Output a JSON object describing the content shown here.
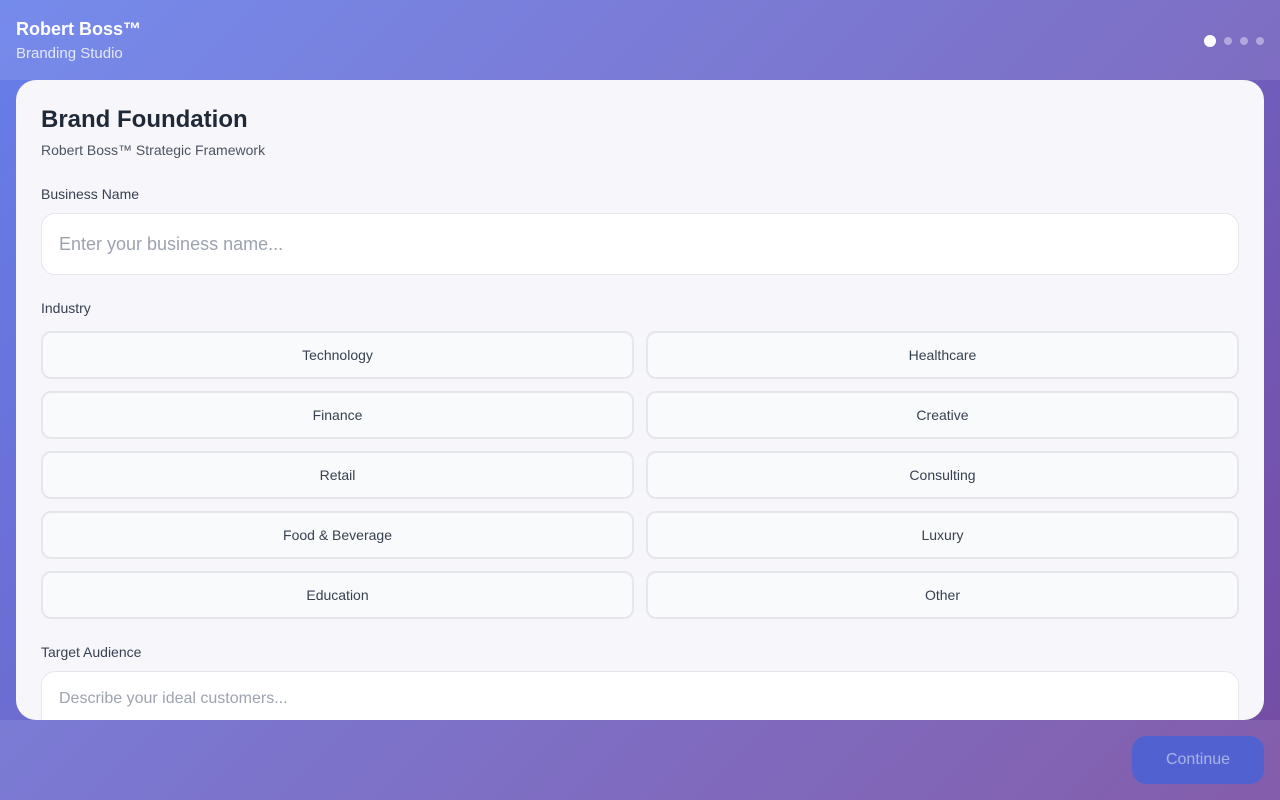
{
  "header": {
    "title": "Robert Boss™",
    "subtitle": "Branding Studio",
    "steps_total": 4,
    "current_step": 1
  },
  "card": {
    "title": "Brand Foundation",
    "subtitle": "Robert Boss™ Strategic Framework",
    "business_name": {
      "label": "Business Name",
      "placeholder": "Enter your business name...",
      "value": ""
    },
    "industry": {
      "label": "Industry",
      "options": [
        "Technology",
        "Healthcare",
        "Finance",
        "Creative",
        "Retail",
        "Consulting",
        "Food & Beverage",
        "Luxury",
        "Education",
        "Other"
      ]
    },
    "audience": {
      "label": "Target Audience",
      "placeholder": "Describe your ideal customers...",
      "value": ""
    }
  },
  "footer": {
    "continue_label": "Continue"
  }
}
